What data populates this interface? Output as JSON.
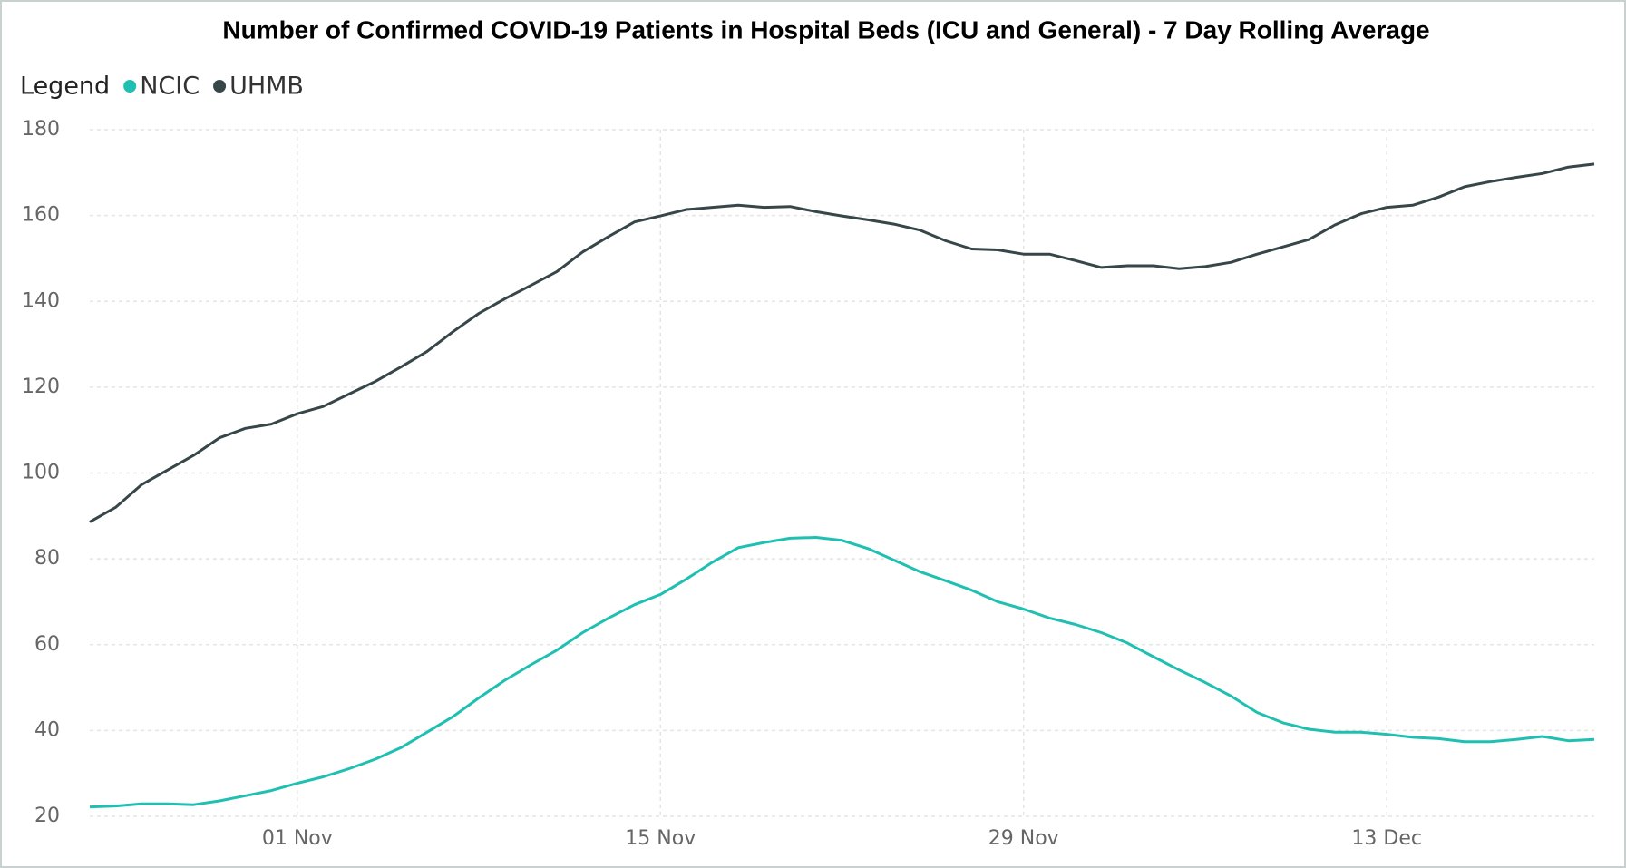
{
  "chart_data": {
    "type": "line",
    "title": "Number of Confirmed COVID-19 Patients in Hospital Beds (ICU and General) - 7 Day Rolling Average",
    "legend_title": "Legend",
    "categories": [
      null,
      null,
      null,
      null,
      null,
      null,
      null,
      null,
      "01 Nov",
      null,
      null,
      null,
      null,
      null,
      null,
      null,
      null,
      null,
      null,
      null,
      null,
      null,
      "15 Nov",
      null,
      null,
      null,
      null,
      null,
      null,
      null,
      null,
      null,
      null,
      null,
      null,
      null,
      "29 Nov",
      null,
      null,
      null,
      null,
      null,
      null,
      null,
      null,
      null,
      null,
      null,
      null,
      null,
      "13 Dec",
      null,
      null,
      null,
      null,
      null,
      null,
      null,
      null
    ],
    "series": [
      {
        "name": "NCIC",
        "color": "#1fbfb1",
        "values": [
          22.2,
          22.4,
          22.9,
          22.9,
          22.7,
          23.6,
          24.8,
          26.0,
          27.7,
          29.2,
          31.1,
          33.3,
          36.0,
          39.6,
          43.2,
          47.6,
          51.7,
          55.3,
          58.7,
          62.8,
          66.2,
          69.3,
          71.7,
          75.3,
          79.2,
          82.6,
          83.8,
          84.8,
          85.0,
          84.3,
          82.4,
          79.7,
          77.0,
          74.9,
          72.7,
          70.0,
          68.3,
          66.2,
          64.7,
          62.8,
          60.4,
          57.2,
          54.1,
          51.2,
          48.0,
          44.2,
          41.8,
          40.3,
          39.6,
          39.6,
          39.1,
          38.4,
          38.1,
          37.4,
          37.4,
          37.9,
          38.6,
          37.6,
          37.9
        ]
      },
      {
        "name": "UHMB",
        "color": "#374649",
        "values": [
          88.6,
          92.0,
          97.3,
          100.7,
          104.1,
          108.2,
          110.4,
          111.4,
          113.8,
          115.5,
          118.4,
          121.3,
          124.7,
          128.3,
          132.9,
          137.2,
          140.6,
          143.7,
          146.9,
          151.5,
          155.1,
          158.5,
          159.9,
          161.4,
          161.9,
          162.4,
          161.9,
          162.1,
          160.9,
          159.9,
          159.0,
          158.0,
          156.6,
          154.1,
          152.2,
          152.0,
          151.0,
          151.0,
          149.5,
          147.9,
          148.3,
          148.3,
          147.6,
          148.1,
          149.1,
          151.0,
          152.7,
          154.4,
          157.8,
          160.4,
          161.9,
          162.4,
          164.3,
          166.7,
          167.9,
          168.9,
          169.8,
          171.3,
          172.0
        ]
      }
    ],
    "ylim": [
      20,
      180
    ],
    "yticks": [
      20,
      40,
      60,
      80,
      100,
      120,
      140,
      160,
      180
    ],
    "grid": true
  }
}
